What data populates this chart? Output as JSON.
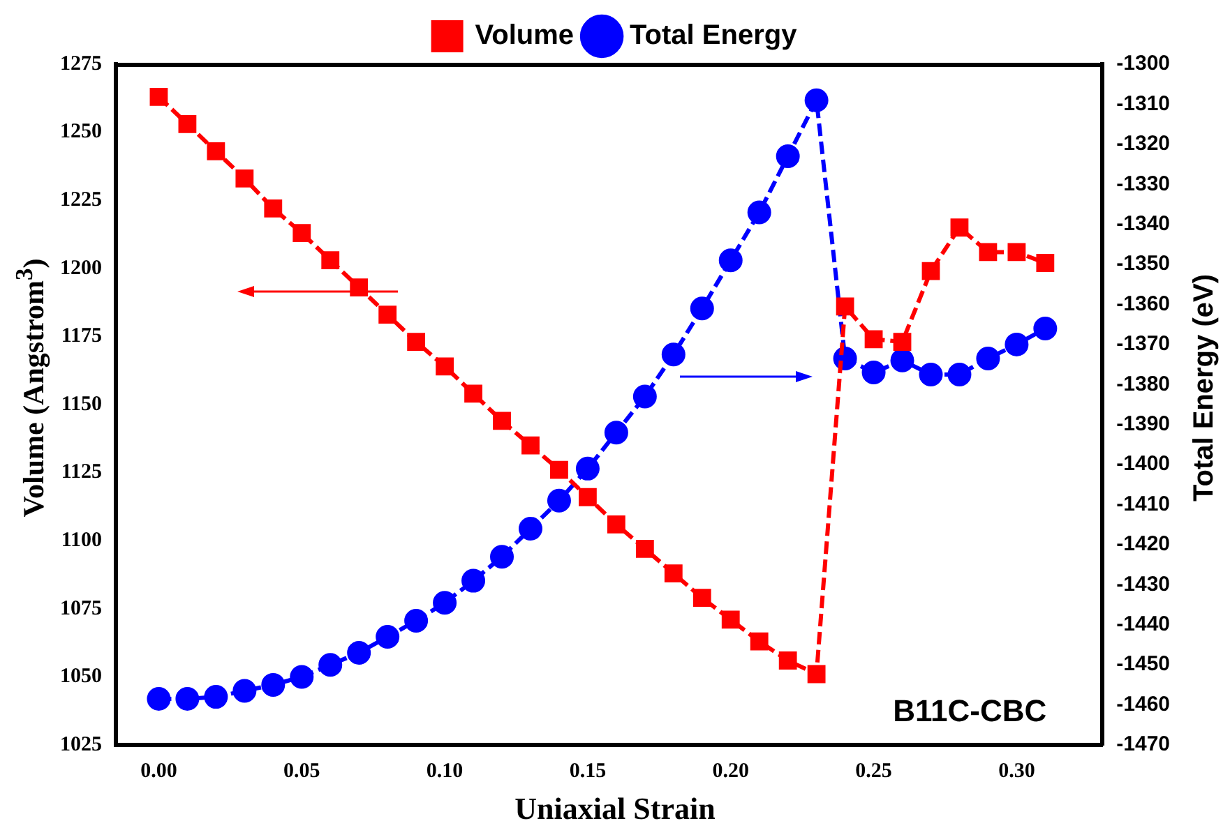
{
  "chart_data": {
    "type": "line",
    "xlabel": "Uniaxial Strain",
    "ylabel": "Volume (Angstrom$^{3}$)",
    "y2label": "Total Energy (eV)",
    "x": [
      0,
      0.01,
      0.02,
      0.03,
      0.04,
      0.05,
      0.06,
      0.07,
      0.08,
      0.09,
      0.1,
      0.11,
      0.12,
      0.13,
      0.14,
      0.15,
      0.16,
      0.17,
      0.18,
      0.19,
      0.2,
      0.21,
      0.22,
      0.23,
      0.24,
      0.25,
      0.26,
      0.27,
      0.28,
      0.29,
      0.3,
      0.31
    ],
    "series": [
      {
        "name": "Volume",
        "color": "#ff0000",
        "marker": "square",
        "values": [
          1263,
          1253,
          1243,
          1233,
          1222,
          1213,
          1203,
          1193,
          1183,
          1173,
          1164,
          1154,
          1144,
          1135,
          1126,
          1116,
          1106,
          1097,
          1088,
          1079,
          1071,
          1063,
          1056,
          1051,
          1186,
          1174,
          1173,
          1199,
          1215,
          1206,
          1206,
          1202
        ]
      },
      {
        "name": "Total Energy",
        "color": "#0000ff",
        "marker": "circle",
        "axis": "y2",
        "values": [
          -1458.5,
          -1458.5,
          -1458,
          -1456.5,
          -1455,
          -1453,
          -1450,
          -1447,
          -1443,
          -1439,
          -1434.5,
          -1429,
          -1423,
          -1416,
          -1409,
          -1401,
          -1392,
          -1383,
          -1372.5,
          -1361,
          -1349,
          -1337,
          -1323,
          -1309,
          -1373.5,
          -1377,
          -1374,
          -1377.5,
          -1377.5,
          -1373.5,
          -1370,
          -1366
        ]
      }
    ],
    "xlim": [
      -0.015,
      0.33
    ],
    "xticks": [
      {
        "value": 0,
        "label": "0.00"
      },
      {
        "value": 0.05,
        "label": "0.05"
      },
      {
        "value": 0.1,
        "label": "0.10"
      },
      {
        "value": 0.15,
        "label": "0.15"
      },
      {
        "value": 0.2,
        "label": "0.20"
      },
      {
        "value": 0.25,
        "label": "0.25"
      },
      {
        "value": 0.3,
        "label": "0.30"
      }
    ],
    "ylim": [
      1025,
      1275
    ],
    "yticks": [
      1025,
      1050,
      1075,
      1100,
      1125,
      1150,
      1175,
      1200,
      1225,
      1250,
      1275
    ],
    "y2lim": [
      -1470,
      -1300
    ],
    "y2ticks": [
      -1470,
      -1460,
      -1450,
      -1440,
      -1430,
      -1420,
      -1410,
      -1400,
      -1390,
      -1380,
      -1370,
      -1360,
      -1350,
      -1340,
      -1330,
      -1320,
      -1310,
      -1300
    ],
    "annotations": [
      "B11C-CBC"
    ],
    "legend": "top",
    "grid": false,
    "line_style": "dashed"
  }
}
